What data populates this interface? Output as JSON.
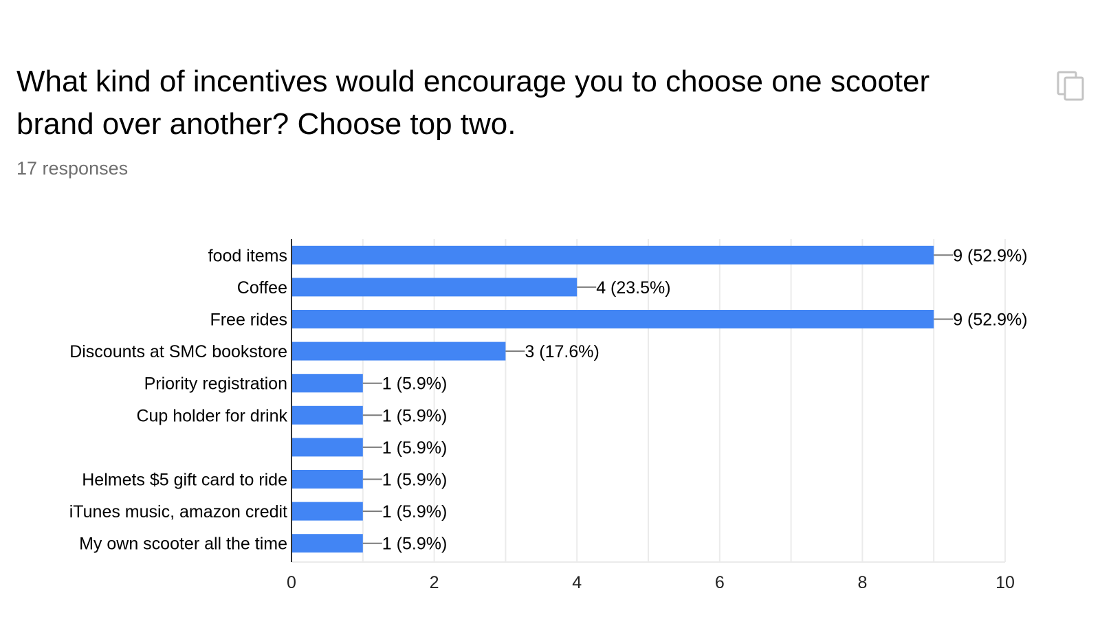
{
  "question": {
    "title": "What kind of incentives would encourage you to choose one scooter brand over another? Choose top two.",
    "response_count": "17 responses"
  },
  "icons": {
    "copy": "copy-icon"
  },
  "colors": {
    "bar": "#4285f4",
    "grid": "#ebebeb",
    "axis": "#333333",
    "leader": "#7a7a7a"
  },
  "chart_data": {
    "type": "bar",
    "orientation": "horizontal",
    "categories": [
      "food items",
      "Coffee",
      "Free rides",
      "Discounts at SMC bookstore",
      "Priority registration",
      "Cup holder for drink",
      "",
      "Helmets $5 gift card to ride",
      "iTunes music, amazon credit",
      "My own scooter all the time"
    ],
    "values": [
      9,
      4,
      9,
      3,
      1,
      1,
      1,
      1,
      1,
      1
    ],
    "data_labels": [
      "9 (52.9%)",
      "4 (23.5%)",
      "9 (52.9%)",
      "3 (17.6%)",
      "1 (5.9%)",
      "1 (5.9%)",
      "1 (5.9%)",
      "1 (5.9%)",
      "1 (5.9%)",
      "1 (5.9%)"
    ],
    "xlim": [
      0,
      10
    ],
    "xticks": [
      "0",
      "2",
      "4",
      "6",
      "8",
      "10"
    ],
    "grid": true,
    "legend": "none"
  }
}
